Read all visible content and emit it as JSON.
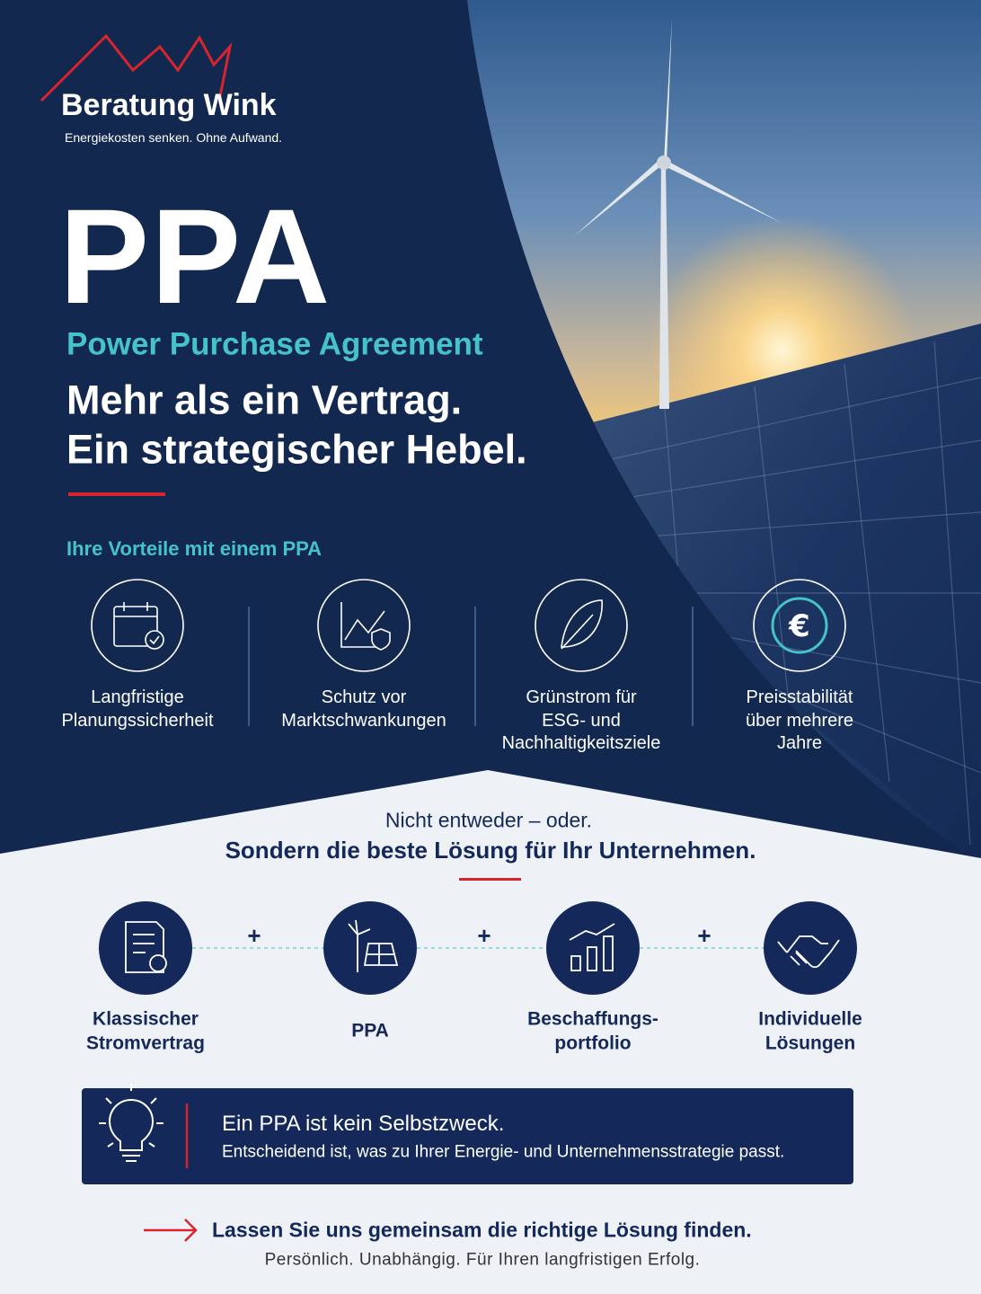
{
  "logo": {
    "name": "Beratung Wink",
    "tagline": "Energiekosten senken. Ohne Aufwand."
  },
  "hero": {
    "title": "PPA",
    "subtitle": "Power Purchase Agreement",
    "headline": [
      "Mehr als ein Vertrag.",
      "Ein strategischer Hebel."
    ]
  },
  "benefits": {
    "heading": "Ihre Vorteile mit einem PPA",
    "items": [
      {
        "label": [
          "Langfristige",
          "Planungssicherheit"
        ]
      },
      {
        "label": [
          "Schutz vor",
          "Marktschwankungen"
        ]
      },
      {
        "label": [
          "Grünstrom für",
          "ESG- und",
          "Nachhaltigkeitsziele"
        ]
      },
      {
        "label": [
          "Preisstabilität",
          "über mehrere",
          "Jahre"
        ]
      }
    ]
  },
  "options": {
    "intro": "Nicht entweder – oder.",
    "heading": "Sondern die beste Lösung für Ihr Unternehmen.",
    "connector": "+",
    "items": [
      {
        "label": [
          "Klassischer",
          "Stromvertrag"
        ]
      },
      {
        "label": [
          "PPA"
        ]
      },
      {
        "label": [
          "Beschaffungs-",
          "portfolio"
        ]
      },
      {
        "label": [
          "Individuelle",
          "Lösungen"
        ]
      }
    ]
  },
  "callout": {
    "title": "Ein PPA ist kein Selbstzweck.",
    "text": "Entscheidend ist, was zu Ihrer Energie- und Unternehmensstrategie passt."
  },
  "cta": {
    "title": "Lassen Sie uns gemeinsam die richtige Lösung finden.",
    "subtitle": "Persönlich. Unabhängig. Für Ihren langfristigen Erfolg."
  }
}
